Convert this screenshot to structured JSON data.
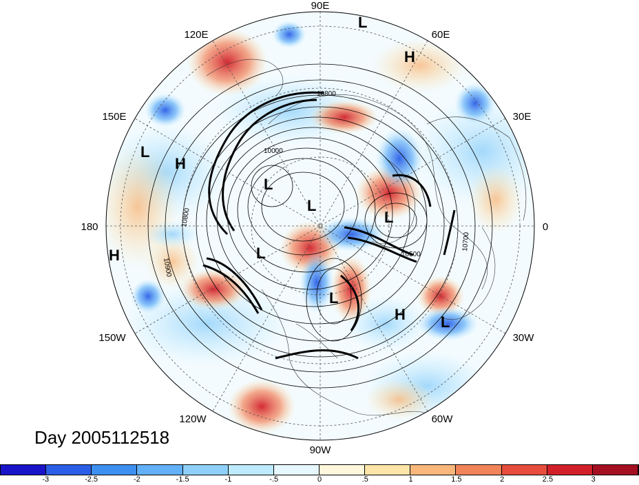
{
  "title": "Day 2005112518",
  "longitude_labels": {
    "north": "90E",
    "ne1": "60E",
    "ne2": "30E",
    "east": "0",
    "se1": "30W",
    "se2": "60W",
    "south": "90W",
    "sw1": "120W",
    "sw2": "150W",
    "west": "180",
    "nw1": "150E",
    "nw2": "120E"
  },
  "contour_labels": [
    "10800",
    "10000",
    "10800",
    "10900",
    "10500",
    "10700"
  ],
  "pressure_centers": [
    {
      "label": "L"
    },
    {
      "label": "H"
    },
    {
      "label": "L"
    },
    {
      "label": "H"
    },
    {
      "label": "L"
    },
    {
      "label": "L"
    },
    {
      "label": "L"
    },
    {
      "label": "H"
    },
    {
      "label": "L"
    },
    {
      "label": "L"
    },
    {
      "label": "H"
    },
    {
      "label": "L"
    }
  ],
  "colorbar": {
    "colors": [
      "#1a14c8",
      "#2b5ee6",
      "#3d8ff0",
      "#62b0f7",
      "#8fd0fa",
      "#bdeafc",
      "#e6f8fe",
      "#fff8dc",
      "#fde5a8",
      "#f9b77c",
      "#f2845a",
      "#e74d3c",
      "#d1202a",
      "#a50f22"
    ],
    "tick_labels": [
      "-3",
      "-2.5",
      "-2",
      "-1.5",
      "-1",
      "-.5",
      "0",
      ".5",
      "1",
      "1.5",
      "2",
      "2.5",
      "3"
    ]
  }
}
